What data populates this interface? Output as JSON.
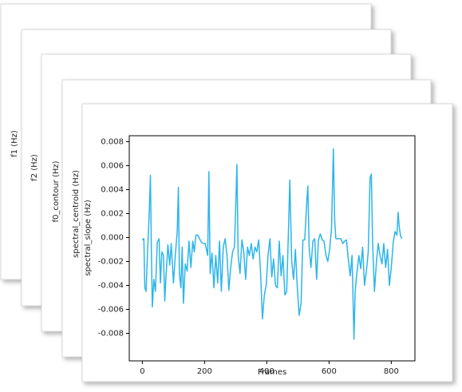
{
  "cards": [
    {
      "ylabel": "f1 (Hz)"
    },
    {
      "ylabel": "f2 (Hz)"
    },
    {
      "ylabel": "f0_contour (Hz)"
    },
    {
      "ylabel": "spectral_centroid (Hz)"
    }
  ],
  "chart_data": {
    "type": "line",
    "ylabel": "spectral_slope (Hz)",
    "xlabel": "Frames",
    "color": "#2cb5ec",
    "xlim": [
      -42,
      876
    ],
    "ylim": [
      -0.0103,
      0.0085
    ],
    "xticks": [
      0,
      200,
      400,
      600,
      800
    ],
    "yticks": [
      -0.008,
      -0.006,
      -0.004,
      -0.002,
      {
        "value": 0,
        "label": "0.000"
      },
      0.002,
      0.004,
      0.006,
      0.008
    ],
    "x": [
      0,
      5,
      8,
      12,
      17,
      22,
      26,
      29,
      32,
      37,
      42,
      48,
      54,
      58,
      63,
      68,
      72,
      76,
      82,
      88,
      93,
      100,
      106,
      112,
      116,
      119,
      124,
      128,
      132,
      138,
      144,
      150,
      156,
      162,
      167,
      172,
      178,
      184,
      190,
      196,
      202,
      210,
      214,
      218,
      224,
      230,
      236,
      242,
      248,
      254,
      260,
      266,
      272,
      278,
      284,
      290,
      296,
      300,
      304,
      308,
      314,
      320,
      326,
      332,
      338,
      344,
      350,
      356,
      362,
      368,
      374,
      380,
      386,
      392,
      398,
      404,
      410,
      416,
      422,
      428,
      434,
      440,
      446,
      452,
      458,
      464,
      470,
      474,
      480,
      486,
      492,
      498,
      504,
      510,
      516,
      522,
      528,
      532,
      536,
      542,
      548,
      554,
      560,
      566,
      572,
      578,
      584,
      590,
      596,
      602,
      608,
      614,
      618,
      622,
      630,
      638,
      644,
      650,
      656,
      662,
      668,
      674,
      680,
      684,
      690,
      696,
      702,
      708,
      714,
      720,
      726,
      732,
      736,
      740,
      746,
      752,
      758,
      764,
      770,
      776,
      782,
      788,
      794,
      800,
      806,
      812,
      818,
      822,
      826,
      830,
      834
    ],
    "values": [
      -0.0002,
      -0.0001,
      -0.0042,
      -0.0045,
      -0.001,
      0.002,
      0.0052,
      -0.001,
      -0.0058,
      -0.0035,
      -0.0045,
      -0.0004,
      -0.0001,
      -0.0038,
      -0.0012,
      -0.0015,
      -0.0053,
      -0.0033,
      -0.0006,
      -0.0023,
      -0.0005,
      -0.0038,
      -0.0015,
      0.0005,
      0.0042,
      -0.003,
      -0.0042,
      -0.0008,
      -0.0055,
      -0.0022,
      -0.0028,
      -0.0003,
      -0.0025,
      -0.0003,
      -0.0012,
      0.0002,
      0.0002,
      -0.0001,
      -0.0004,
      -0.0005,
      -0.0005,
      -0.0015,
      0.0055,
      -0.003,
      -0.0013,
      -0.0042,
      -0.0015,
      -0.0038,
      -0.0003,
      -0.0045,
      -0.0008,
      -0.0001,
      -0.0015,
      -0.0044,
      -0.0025,
      -0.0012,
      -0.0008,
      0.0025,
      0.0061,
      -0.0015,
      -0.003,
      -0.0002,
      -0.0012,
      -0.0035,
      -0.0008,
      -0.0015,
      -0.0005,
      -0.0018,
      -0.0008,
      -0.0012,
      -0.0002,
      -0.003,
      -0.0068,
      -0.0048,
      -0.004,
      -0.0015,
      -0.0001,
      -0.0033,
      -0.0018,
      -0.004,
      -0.0042,
      -0.0003,
      -0.0032,
      -0.0015,
      -0.0048,
      -0.0045,
      0.001,
      0.0048,
      -0.002,
      -0.0035,
      -0.001,
      -0.0042,
      -0.0065,
      -0.0055,
      -0.0002,
      -0.0002,
      0.0028,
      0.0043,
      -0.0008,
      -0.0025,
      -0.0003,
      -0.0001,
      -0.0035,
      -0.0002,
      0.0003,
      -0.0002,
      -0.0003,
      -0.0015,
      -0.002,
      -0.001,
      0.0008,
      0.0074,
      0.0015,
      -0.0001,
      -0.0001,
      -0.0001,
      -0.0005,
      -0.0003,
      -0.0002,
      -0.0018,
      -0.0032,
      -0.0015,
      -0.0085,
      -0.0045,
      -0.0028,
      -0.0015,
      -0.0026,
      -0.0008,
      -0.004,
      -0.0028,
      -0.0012,
      0.005,
      0.0053,
      -0.0005,
      -0.0045,
      -0.0022,
      -0.0005,
      -0.0015,
      -0.0022,
      -0.0005,
      -0.0025,
      -0.001,
      -0.004,
      -0.0025,
      -0.0005,
      0.0005,
      0.0002,
      0.0021,
      0.0008,
      0.0001,
      -0.0001
    ]
  }
}
